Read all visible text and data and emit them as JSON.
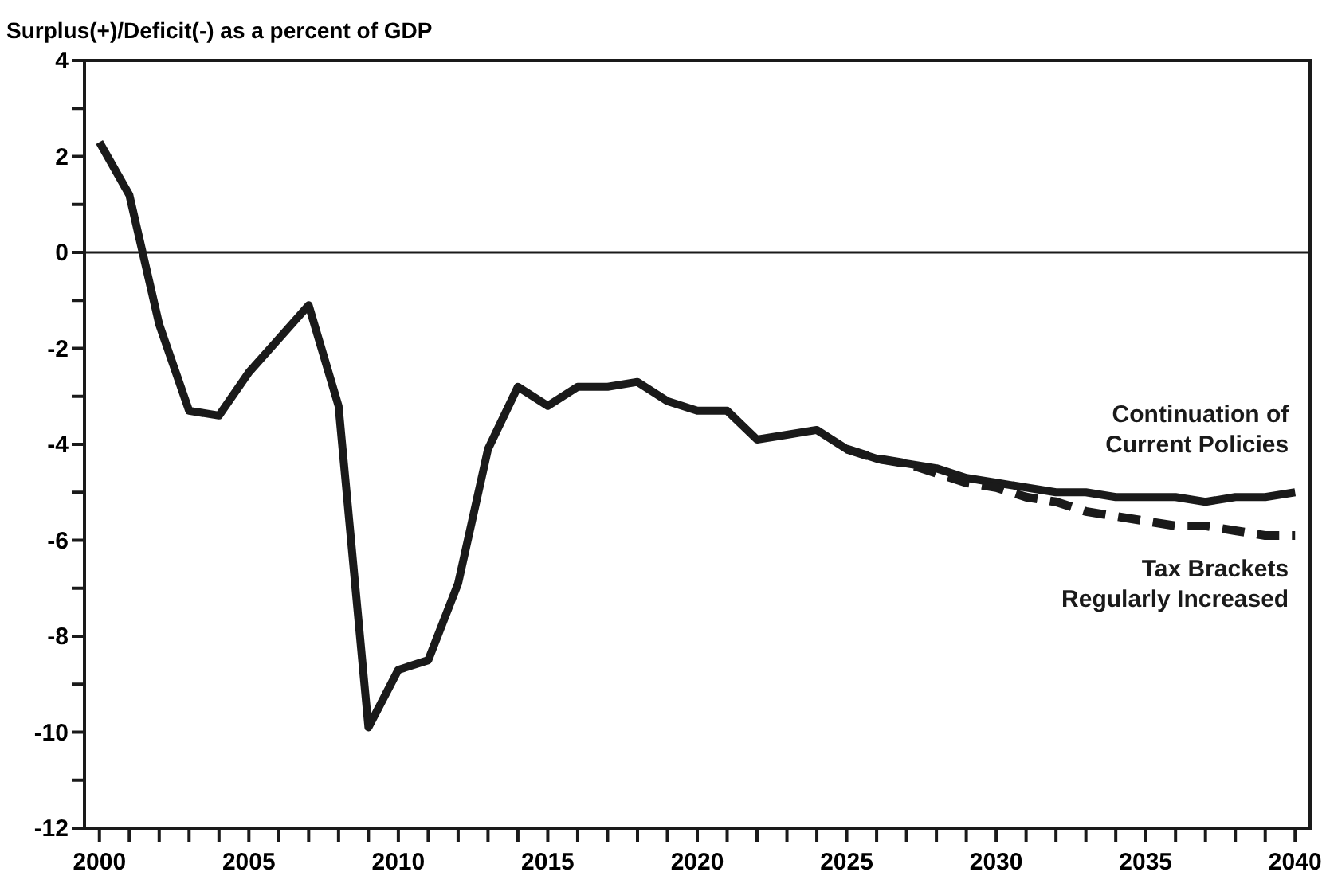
{
  "chart_data": {
    "type": "line",
    "ylabel": "Surplus(+)/Deficit(-) as a percent of GDP",
    "x": [
      2000,
      2001,
      2002,
      2003,
      2004,
      2005,
      2006,
      2007,
      2008,
      2009,
      2010,
      2011,
      2012,
      2013,
      2014,
      2015,
      2016,
      2017,
      2018,
      2019,
      2020,
      2021,
      2022,
      2023,
      2024,
      2025,
      2026,
      2027,
      2028,
      2029,
      2030,
      2031,
      2032,
      2033,
      2034,
      2035,
      2036,
      2037,
      2038,
      2039,
      2040
    ],
    "series": [
      {
        "name": "Continuation of Current Policies",
        "color": "#1a1a1a",
        "line_style": "solid",
        "values": [
          2.3,
          1.2,
          -1.5,
          -3.3,
          -3.4,
          -2.5,
          -1.8,
          -1.1,
          -3.2,
          -9.9,
          -8.7,
          -8.5,
          -6.9,
          -4.1,
          -2.8,
          -3.2,
          -2.8,
          -2.8,
          -2.7,
          -3.1,
          -3.3,
          -3.3,
          -3.9,
          -3.8,
          -3.7,
          -4.1,
          -4.3,
          -4.4,
          -4.5,
          -4.7,
          -4.8,
          -4.9,
          -5.0,
          -5.0,
          -5.1,
          -5.1,
          -5.1,
          -5.2,
          -5.1,
          -5.1,
          -5.0
        ]
      },
      {
        "name": "Tax Brackets Regularly Increased",
        "color": "#1a1a1a",
        "line_style": "dashed",
        "x": [
          2025,
          2026,
          2027,
          2028,
          2029,
          2030,
          2031,
          2032,
          2033,
          2034,
          2035,
          2036,
          2037,
          2038,
          2039,
          2040
        ],
        "values": [
          -4.1,
          -4.3,
          -4.4,
          -4.6,
          -4.8,
          -4.9,
          -5.1,
          -5.2,
          -5.4,
          -5.5,
          -5.6,
          -5.7,
          -5.7,
          -5.8,
          -5.9,
          -5.9
        ]
      }
    ],
    "xlim": [
      1999.5,
      2040.5
    ],
    "xticks": [
      2000,
      {
        "value": 2001,
        "label": null
      },
      {
        "value": 2002,
        "label": null
      },
      {
        "value": 2003,
        "label": null
      },
      {
        "value": 2004,
        "label": null
      },
      2005,
      {
        "value": 2006,
        "label": null
      },
      {
        "value": 2007,
        "label": null
      },
      {
        "value": 2008,
        "label": null
      },
      {
        "value": 2009,
        "label": null
      },
      2010,
      {
        "value": 2011,
        "label": null
      },
      {
        "value": 2012,
        "label": null
      },
      {
        "value": 2013,
        "label": null
      },
      {
        "value": 2014,
        "label": null
      },
      2015,
      {
        "value": 2016,
        "label": null
      },
      {
        "value": 2017,
        "label": null
      },
      {
        "value": 2018,
        "label": null
      },
      {
        "value": 2019,
        "label": null
      },
      2020,
      {
        "value": 2021,
        "label": null
      },
      {
        "value": 2022,
        "label": null
      },
      {
        "value": 2023,
        "label": null
      },
      {
        "value": 2024,
        "label": null
      },
      2025,
      {
        "value": 2026,
        "label": null
      },
      {
        "value": 2027,
        "label": null
      },
      {
        "value": 2028,
        "label": null
      },
      {
        "value": 2029,
        "label": null
      },
      2030,
      {
        "value": 2031,
        "label": null
      },
      {
        "value": 2032,
        "label": null
      },
      {
        "value": 2033,
        "label": null
      },
      {
        "value": 2034,
        "label": null
      },
      2035,
      {
        "value": 2036,
        "label": null
      },
      {
        "value": 2037,
        "label": null
      },
      {
        "value": 2038,
        "label": null
      },
      {
        "value": 2039,
        "label": null
      },
      2040
    ],
    "ylim": [
      -12,
      4
    ],
    "yticks": [
      -12,
      {
        "value": -11,
        "label": null
      },
      -10,
      {
        "value": -9,
        "label": null
      },
      -8,
      {
        "value": -7,
        "label": null
      },
      -6,
      {
        "value": -5,
        "label": null
      },
      -4,
      {
        "value": -3,
        "label": null
      },
      -2,
      {
        "value": -1,
        "label": null
      },
      0,
      {
        "value": 1,
        "label": null
      },
      2,
      {
        "value": 3,
        "label": null
      },
      4
    ],
    "ref_lines": [
      {
        "axis": "y",
        "value": 0,
        "color": "#1a1a1a"
      }
    ],
    "grid": false,
    "marker": "none"
  }
}
